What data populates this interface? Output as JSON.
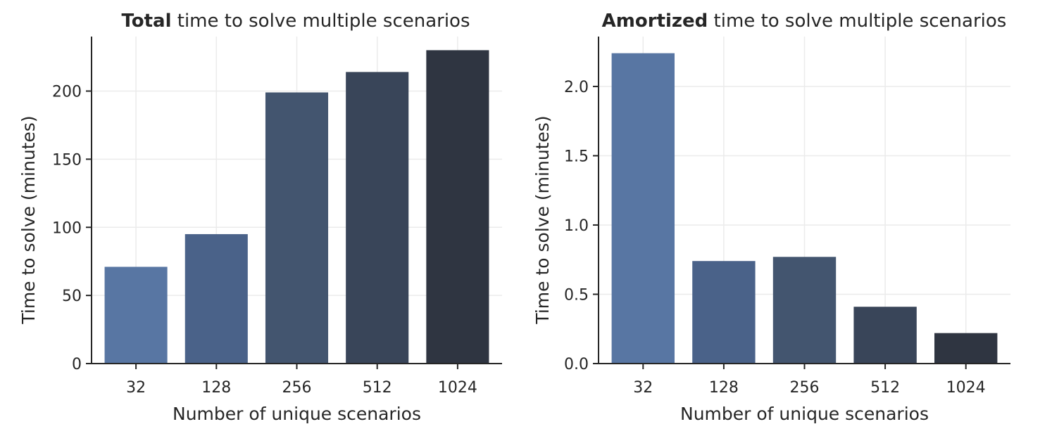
{
  "chart_data": [
    {
      "type": "bar",
      "title_bold": "Total",
      "title_rest": " time to solve multiple scenarios",
      "xlabel": "Number of unique scenarios",
      "ylabel": "Time to solve (minutes)",
      "categories": [
        "32",
        "128",
        "256",
        "512",
        "1024"
      ],
      "values": [
        71,
        95,
        199,
        214,
        230
      ],
      "ylim": [
        0,
        240
      ],
      "yticks": [
        0,
        50,
        100,
        150,
        200
      ],
      "ytick_labels": [
        "0",
        "50",
        "100",
        "150",
        "200"
      ],
      "grid": true,
      "bar_colors": [
        "#5876a3",
        "#4a6289",
        "#43556f",
        "#394559",
        "#2f3541"
      ]
    },
    {
      "type": "bar",
      "title_bold": "Amortized",
      "title_rest": " time to solve multiple scenarios",
      "xlabel": "Number of unique scenarios",
      "ylabel": "Time to solve (minutes)",
      "categories": [
        "32",
        "128",
        "256",
        "512",
        "1024"
      ],
      "values": [
        2.24,
        0.74,
        0.77,
        0.41,
        0.22
      ],
      "ylim": [
        0,
        2.36
      ],
      "yticks": [
        0,
        0.5,
        1.0,
        1.5,
        2.0
      ],
      "ytick_labels": [
        "0.0",
        "0.5",
        "1.0",
        "1.5",
        "2.0"
      ],
      "grid": true,
      "bar_colors": [
        "#5876a3",
        "#4a6289",
        "#43556f",
        "#394559",
        "#2f3541"
      ]
    }
  ]
}
